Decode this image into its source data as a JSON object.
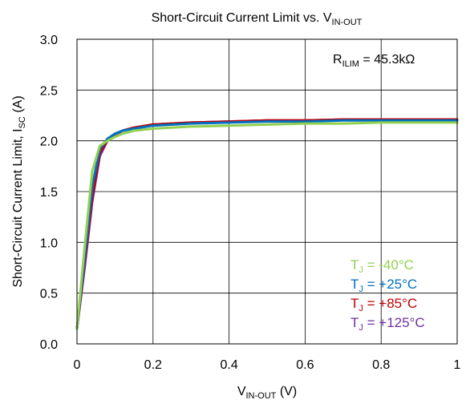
{
  "chart_data": {
    "type": "line",
    "title": {
      "main": "Short-Circuit Current Limit vs. V",
      "sub": "IN-OUT"
    },
    "xlabel": {
      "main": "V",
      "sub": "IN-OUT",
      "suffix": " (V)"
    },
    "ylabel": {
      "main": "Short-Circuit Current Limit, I",
      "sub": "SC",
      "suffix": " (A)"
    },
    "xlim": [
      0,
      1
    ],
    "ylim": [
      0,
      3
    ],
    "x_ticks": [
      0,
      0.2,
      0.4,
      0.6,
      0.8,
      1
    ],
    "x_tick_labels": [
      "0",
      "0.2",
      "0.4",
      "0.6",
      "0.8",
      "1"
    ],
    "y_ticks": [
      0,
      0.5,
      1,
      1.5,
      2,
      2.5,
      3
    ],
    "y_tick_labels": [
      "0.0",
      "0.5",
      "1.0",
      "1.5",
      "2.0",
      "2.5",
      "3.0"
    ],
    "grid": true,
    "annotation": {
      "main": "R",
      "sub": "ILIM",
      "suffix": " = 45.3kΩ"
    },
    "legend_position": "bottom-right",
    "series": [
      {
        "name": "+125°C",
        "legend_prefix": "T",
        "legend_sub": "J",
        "legend_suffix": " = +125°C",
        "color": "#7030a0",
        "x": [
          0,
          0.02,
          0.04,
          0.06,
          0.08,
          0.1,
          0.12,
          0.15,
          0.2,
          0.3,
          0.4,
          0.5,
          0.6,
          0.7,
          0.8,
          0.9,
          1.0
        ],
        "y": [
          0.15,
          0.75,
          1.4,
          1.85,
          2.0,
          2.06,
          2.1,
          2.13,
          2.16,
          2.18,
          2.19,
          2.2,
          2.2,
          2.21,
          2.21,
          2.21,
          2.21
        ]
      },
      {
        "name": "+85°C",
        "legend_prefix": "T",
        "legend_sub": "J",
        "legend_suffix": " = +85°C",
        "color": "#c00000",
        "x": [
          0,
          0.02,
          0.04,
          0.06,
          0.08,
          0.1,
          0.12,
          0.15,
          0.2,
          0.3,
          0.4,
          0.5,
          0.6,
          0.7,
          0.8,
          0.9,
          1.0
        ],
        "y": [
          0.15,
          0.8,
          1.45,
          1.88,
          2.01,
          2.07,
          2.1,
          2.13,
          2.16,
          2.18,
          2.19,
          2.2,
          2.2,
          2.21,
          2.21,
          2.21,
          2.21
        ]
      },
      {
        "name": "+25°C",
        "legend_prefix": "T",
        "legend_sub": "J",
        "legend_suffix": " = +25°C",
        "color": "#0070c0",
        "x": [
          0,
          0.02,
          0.04,
          0.06,
          0.08,
          0.1,
          0.12,
          0.15,
          0.2,
          0.3,
          0.4,
          0.5,
          0.6,
          0.7,
          0.8,
          0.9,
          1.0
        ],
        "y": [
          0.15,
          0.85,
          1.55,
          1.92,
          2.02,
          2.07,
          2.1,
          2.12,
          2.15,
          2.17,
          2.18,
          2.19,
          2.19,
          2.2,
          2.2,
          2.2,
          2.2
        ]
      },
      {
        "name": "-40°C",
        "legend_prefix": "T",
        "legend_sub": "J",
        "legend_suffix": " = -40°C",
        "color": "#92d050",
        "x": [
          0,
          0.02,
          0.04,
          0.06,
          0.08,
          0.1,
          0.12,
          0.15,
          0.2,
          0.3,
          0.4,
          0.5,
          0.6,
          0.7,
          0.8,
          0.9,
          1.0
        ],
        "y": [
          0.15,
          0.95,
          1.7,
          1.95,
          2.0,
          2.04,
          2.07,
          2.1,
          2.12,
          2.14,
          2.15,
          2.16,
          2.17,
          2.17,
          2.18,
          2.18,
          2.18
        ]
      }
    ],
    "legend_order": [
      "-40°C",
      "+25°C",
      "+85°C",
      "+125°C"
    ]
  }
}
